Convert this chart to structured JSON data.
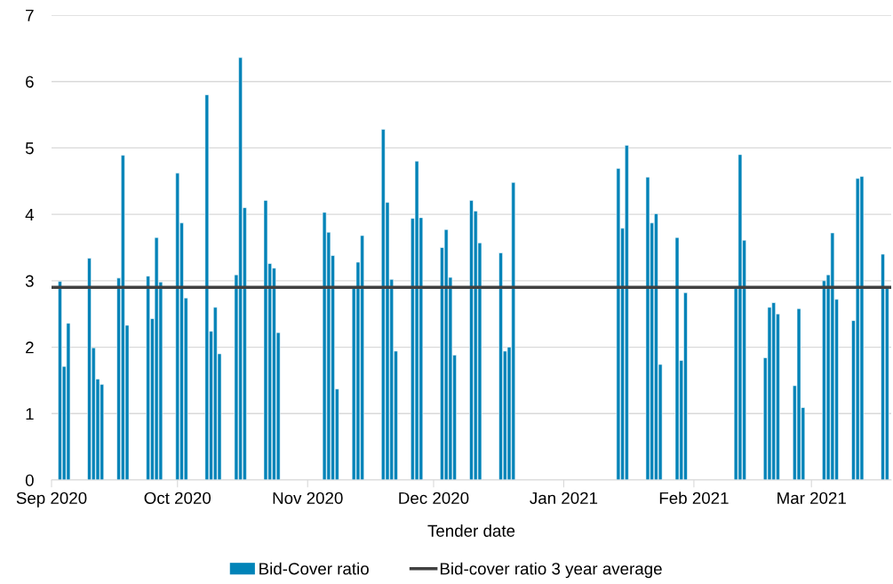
{
  "chart_data": {
    "type": "bar",
    "xlabel": "Tender date",
    "x": [
      "2020-09-03",
      "2020-09-04",
      "2020-09-05",
      "2020-09-10",
      "2020-09-11",
      "2020-09-12",
      "2020-09-13",
      "2020-09-17",
      "2020-09-18",
      "2020-09-19",
      "2020-09-24",
      "2020-09-25",
      "2020-09-26",
      "2020-09-27",
      "2020-10-01",
      "2020-10-02",
      "2020-10-03",
      "2020-10-08",
      "2020-10-09",
      "2020-10-10",
      "2020-10-11",
      "2020-10-15",
      "2020-10-16",
      "2020-10-17",
      "2020-10-22",
      "2020-10-23",
      "2020-10-24",
      "2020-10-25",
      "2020-11-05",
      "2020-11-06",
      "2020-11-07",
      "2020-11-08",
      "2020-11-12",
      "2020-11-13",
      "2020-11-14",
      "2020-11-19",
      "2020-11-20",
      "2020-11-21",
      "2020-11-22",
      "2020-11-26",
      "2020-11-27",
      "2020-11-28",
      "2020-12-03",
      "2020-12-04",
      "2020-12-05",
      "2020-12-06",
      "2020-12-10",
      "2020-12-11",
      "2020-12-12",
      "2020-12-17",
      "2020-12-18",
      "2020-12-19",
      "2020-12-20",
      "2021-01-14",
      "2021-01-15",
      "2021-01-16",
      "2021-01-21",
      "2021-01-22",
      "2021-01-23",
      "2021-01-24",
      "2021-01-28",
      "2021-01-29",
      "2021-01-30",
      "2021-02-11",
      "2021-02-12",
      "2021-02-13",
      "2021-02-18",
      "2021-02-19",
      "2021-02-20",
      "2021-02-21",
      "2021-02-25",
      "2021-02-26",
      "2021-02-27",
      "2021-03-04",
      "2021-03-05",
      "2021-03-06",
      "2021-03-07",
      "2021-03-11",
      "2021-03-12",
      "2021-03-13",
      "2021-03-18",
      "2021-03-19"
    ],
    "series": [
      {
        "name": "Bid-Cover ratio",
        "color": "#0083b8",
        "values": [
          2.99,
          1.71,
          2.36,
          3.34,
          1.99,
          1.52,
          1.44,
          3.04,
          4.89,
          2.33,
          3.07,
          2.43,
          3.65,
          2.98,
          4.62,
          3.87,
          2.74,
          5.8,
          2.24,
          2.6,
          1.9,
          3.09,
          6.36,
          4.1,
          4.21,
          3.26,
          3.19,
          2.22,
          4.03,
          3.73,
          3.38,
          1.37,
          2.9,
          3.28,
          3.68,
          5.28,
          4.18,
          3.02,
          1.94,
          3.94,
          4.8,
          3.95,
          3.5,
          3.77,
          3.05,
          1.88,
          4.21,
          4.05,
          3.57,
          3.42,
          1.94,
          2.0,
          4.48,
          4.69,
          3.79,
          5.04,
          4.56,
          3.87,
          4.01,
          1.74,
          3.65,
          1.8,
          2.82,
          2.91,
          4.9,
          3.61,
          1.84,
          2.6,
          2.67,
          2.5,
          1.42,
          2.58,
          1.09,
          3.0,
          3.09,
          3.72,
          2.72,
          2.4,
          4.54,
          4.57,
          3.4,
          2.91
        ]
      }
    ],
    "ref_lines": [
      {
        "axis": "y",
        "value": 2.9,
        "label": "Bid-cover ratio 3 year average",
        "color": "#404040",
        "line_style": "solid"
      }
    ],
    "xlim": [
      "2020-09-01",
      "2021-03-20"
    ],
    "xticks": [
      {
        "value": "2020-09-01",
        "label": "Sep 2020"
      },
      {
        "value": "2020-10-01",
        "label": "Oct 2020"
      },
      {
        "value": "2020-11-01",
        "label": "Nov 2020"
      },
      {
        "value": "2020-12-01",
        "label": "Dec 2020"
      },
      {
        "value": "2021-01-01",
        "label": "Jan 2021"
      },
      {
        "value": "2021-02-01",
        "label": "Feb 2021"
      },
      {
        "value": "2021-03-01",
        "label": "Mar 2021"
      }
    ],
    "ylim": [
      0,
      7
    ],
    "yticks": [
      0,
      1,
      2,
      3,
      4,
      5,
      6,
      7
    ],
    "grid": "y",
    "legend": "bottom"
  }
}
